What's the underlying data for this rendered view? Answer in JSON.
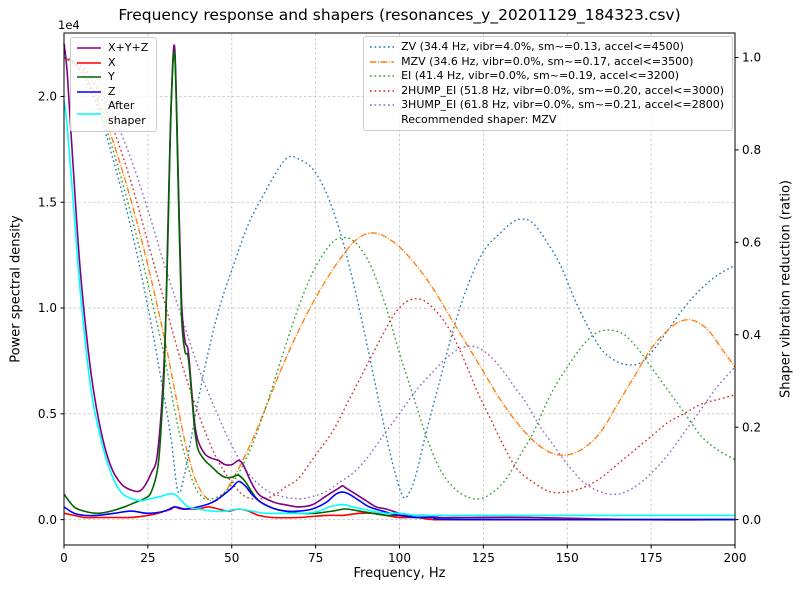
{
  "chart_data": {
    "type": "line",
    "title": "Frequency response and shapers (resonances_y_20201129_184323.csv)",
    "xlabel": "Frequency, Hz",
    "ylabel_left": "Power spectral density",
    "ylabel_right": "Shaper vibration reduction (ratio)",
    "y_offset_text": "1e4",
    "grid": true,
    "xlim": [
      0,
      200
    ],
    "ylim_left": [
      -0.12,
      2.3
    ],
    "ylim_right": [
      -0.055,
      1.053
    ],
    "y_left_units": "1e4 (values match left tick labels)",
    "axes": {
      "x": {
        "label": "Frequency, Hz",
        "ticks": [
          0,
          25,
          50,
          75,
          100,
          125,
          150,
          175,
          200
        ],
        "tick_labels": [
          "0",
          "25",
          "50",
          "75",
          "100",
          "125",
          "150",
          "175",
          "200"
        ]
      },
      "y_left": {
        "label": "Power spectral density",
        "ticks": [
          0,
          0.5,
          1.0,
          1.5,
          2.0
        ],
        "tick_labels": [
          "0.0",
          "0.5",
          "1.0",
          "1.5",
          "2.0"
        ]
      },
      "y_right": {
        "label": "Shaper vibration reduction (ratio)",
        "ticks": [
          0,
          0.2,
          0.4,
          0.6,
          0.8,
          1.0
        ],
        "tick_labels": [
          "0.0",
          "0.2",
          "0.4",
          "0.6",
          "0.8",
          "1.0"
        ]
      }
    },
    "series": [
      {
        "id": "xyz",
        "name": "X+Y+Z",
        "axis": "left",
        "color": "#800080",
        "style": "solid",
        "x": [
          0,
          1,
          3,
          5,
          8,
          11,
          14,
          17,
          20,
          23,
          26,
          28,
          30,
          31,
          32,
          33,
          34,
          35,
          36,
          37,
          38,
          39,
          40,
          42,
          44,
          46,
          48,
          50,
          51,
          52,
          53,
          54,
          56,
          58,
          60,
          63,
          66,
          70,
          74,
          78,
          80,
          82,
          83,
          84,
          86,
          88,
          90,
          93,
          96,
          100,
          104,
          108,
          112,
          120,
          140,
          170,
          200
        ],
        "y": [
          2.25,
          2.1,
          1.6,
          1.15,
          0.7,
          0.42,
          0.25,
          0.17,
          0.14,
          0.14,
          0.22,
          0.33,
          0.8,
          1.4,
          2.0,
          2.23,
          1.65,
          1.05,
          0.85,
          0.8,
          0.62,
          0.45,
          0.37,
          0.31,
          0.29,
          0.28,
          0.26,
          0.26,
          0.27,
          0.28,
          0.27,
          0.24,
          0.17,
          0.12,
          0.1,
          0.08,
          0.07,
          0.06,
          0.07,
          0.11,
          0.13,
          0.15,
          0.16,
          0.15,
          0.13,
          0.11,
          0.09,
          0.06,
          0.05,
          0.03,
          0.02,
          0.02,
          0.01,
          0.01,
          0.01,
          0.0,
          0.0
        ]
      },
      {
        "id": "x",
        "name": "X",
        "axis": "left",
        "color": "#ff0000",
        "style": "solid",
        "x": [
          0,
          3,
          6,
          10,
          15,
          20,
          25,
          28,
          30,
          32,
          33,
          35,
          38,
          40,
          43,
          46,
          49,
          52,
          55,
          58,
          62,
          70,
          78,
          83,
          88,
          92,
          96,
          100,
          105,
          110,
          120,
          200
        ],
        "y": [
          0.03,
          0.02,
          0.01,
          0.01,
          0.01,
          0.01,
          0.02,
          0.03,
          0.04,
          0.05,
          0.06,
          0.05,
          0.05,
          0.05,
          0.06,
          0.05,
          0.04,
          0.05,
          0.04,
          0.02,
          0.01,
          0.01,
          0.02,
          0.02,
          0.03,
          0.03,
          0.02,
          0.01,
          0.01,
          0.0,
          0.0,
          0.0
        ]
      },
      {
        "id": "y",
        "name": "Y",
        "axis": "left",
        "color": "#006400",
        "style": "solid",
        "x": [
          0,
          3,
          6,
          10,
          14,
          18,
          21,
          24,
          26,
          28,
          29,
          30,
          31,
          32,
          33,
          34,
          35,
          36,
          37,
          38,
          39,
          40,
          42,
          44,
          46,
          48,
          50,
          52,
          54,
          56,
          58,
          60,
          63,
          66,
          70,
          75,
          80,
          84,
          88,
          92,
          96,
          100,
          105,
          110,
          120,
          200
        ],
        "y": [
          0.12,
          0.06,
          0.04,
          0.03,
          0.04,
          0.06,
          0.08,
          0.1,
          0.13,
          0.25,
          0.45,
          0.75,
          1.35,
          1.98,
          2.2,
          1.6,
          0.98,
          0.8,
          0.77,
          0.6,
          0.42,
          0.33,
          0.28,
          0.25,
          0.22,
          0.2,
          0.2,
          0.21,
          0.18,
          0.13,
          0.09,
          0.07,
          0.05,
          0.04,
          0.03,
          0.03,
          0.04,
          0.05,
          0.04,
          0.03,
          0.02,
          0.02,
          0.01,
          0.01,
          0.0,
          0.0
        ]
      },
      {
        "id": "z",
        "name": "Z",
        "axis": "left",
        "color": "#0000ff",
        "style": "solid",
        "x": [
          0,
          3,
          6,
          10,
          15,
          20,
          25,
          30,
          33,
          36,
          40,
          44,
          47,
          50,
          52,
          54,
          56,
          58,
          60,
          63,
          66,
          70,
          74,
          78,
          81,
          83,
          85,
          88,
          91,
          95,
          100,
          105,
          110,
          120,
          200
        ],
        "y": [
          0.06,
          0.03,
          0.02,
          0.02,
          0.03,
          0.04,
          0.03,
          0.04,
          0.06,
          0.05,
          0.06,
          0.08,
          0.11,
          0.15,
          0.18,
          0.16,
          0.12,
          0.09,
          0.07,
          0.05,
          0.04,
          0.04,
          0.05,
          0.08,
          0.12,
          0.13,
          0.12,
          0.09,
          0.06,
          0.04,
          0.02,
          0.01,
          0.01,
          0.0,
          0.0
        ]
      },
      {
        "id": "after-shaper",
        "name": "After shaper",
        "axis": "left",
        "color": "#00ffff",
        "style": "solid",
        "x": [
          0,
          1,
          3,
          5,
          8,
          11,
          14,
          17,
          20,
          23,
          26,
          29,
          31,
          33,
          35,
          37,
          40,
          44,
          48,
          52,
          56,
          60,
          64,
          68,
          72,
          76,
          79,
          82,
          84,
          86,
          89,
          92,
          96,
          100,
          105,
          110,
          120,
          140,
          170,
          200
        ],
        "y": [
          1.98,
          1.85,
          1.45,
          1.05,
          0.62,
          0.38,
          0.22,
          0.13,
          0.1,
          0.09,
          0.1,
          0.11,
          0.12,
          0.12,
          0.09,
          0.06,
          0.05,
          0.04,
          0.04,
          0.05,
          0.04,
          0.03,
          0.03,
          0.03,
          0.03,
          0.04,
          0.06,
          0.07,
          0.07,
          0.06,
          0.05,
          0.04,
          0.03,
          0.03,
          0.02,
          0.02,
          0.02,
          0.02,
          0.02,
          0.02
        ]
      },
      {
        "id": "zv",
        "name": "ZV",
        "axis": "right",
        "color": "#1f77b4",
        "style": "dotted",
        "x": [
          0,
          5,
          10,
          15,
          20,
          25,
          30,
          32,
          34,
          36,
          38,
          42,
          46,
          50,
          55,
          60,
          64,
          67,
          70,
          74,
          78,
          82,
          86,
          90,
          94,
          98,
          101,
          103,
          105,
          108,
          112,
          116,
          120,
          125,
          130,
          134,
          137,
          140,
          144,
          148,
          152,
          156,
          160,
          164,
          168,
          172,
          176,
          180,
          185,
          190,
          195,
          200
        ],
        "y": [
          1.0,
          0.97,
          0.89,
          0.77,
          0.63,
          0.46,
          0.26,
          0.17,
          0.06,
          0.1,
          0.18,
          0.33,
          0.45,
          0.54,
          0.64,
          0.71,
          0.76,
          0.785,
          0.78,
          0.76,
          0.71,
          0.63,
          0.52,
          0.39,
          0.25,
          0.12,
          0.05,
          0.06,
          0.1,
          0.19,
          0.3,
          0.41,
          0.5,
          0.58,
          0.62,
          0.645,
          0.65,
          0.64,
          0.6,
          0.55,
          0.48,
          0.42,
          0.37,
          0.345,
          0.335,
          0.34,
          0.37,
          0.41,
          0.46,
          0.5,
          0.53,
          0.55
        ]
      },
      {
        "id": "mzv",
        "name": "MZV",
        "axis": "right",
        "color": "#ff7f0e",
        "style": "dashdot",
        "x": [
          0,
          5,
          10,
          15,
          20,
          25,
          30,
          33,
          36,
          39,
          42,
          45,
          48,
          52,
          56,
          60,
          65,
          70,
          75,
          80,
          85,
          88,
          91,
          95,
          100,
          105,
          110,
          115,
          120,
          125,
          130,
          135,
          140,
          145,
          150,
          155,
          160,
          165,
          170,
          175,
          180,
          184,
          188,
          192,
          196,
          200
        ],
        "y": [
          1.0,
          0.975,
          0.91,
          0.81,
          0.69,
          0.55,
          0.39,
          0.28,
          0.17,
          0.09,
          0.05,
          0.04,
          0.06,
          0.11,
          0.17,
          0.24,
          0.33,
          0.41,
          0.48,
          0.54,
          0.59,
          0.61,
          0.62,
          0.615,
          0.59,
          0.55,
          0.5,
          0.44,
          0.38,
          0.32,
          0.26,
          0.21,
          0.17,
          0.145,
          0.14,
          0.155,
          0.19,
          0.25,
          0.31,
          0.37,
          0.41,
          0.43,
          0.43,
          0.41,
          0.37,
          0.33
        ]
      },
      {
        "id": "ei",
        "name": "EI",
        "axis": "right",
        "color": "#2ca02c",
        "style": "dotted",
        "x": [
          0,
          5,
          10,
          15,
          20,
          25,
          30,
          34,
          38,
          41,
          44,
          48,
          52,
          56,
          60,
          64,
          68,
          72,
          76,
          80,
          83,
          86,
          89,
          92,
          96,
          100,
          104,
          108,
          112,
          116,
          120,
          124,
          128,
          132,
          136,
          140,
          145,
          150,
          155,
          159,
          163,
          167,
          171,
          175,
          180,
          185,
          190,
          195,
          200
        ],
        "y": [
          1.0,
          0.97,
          0.9,
          0.79,
          0.66,
          0.51,
          0.35,
          0.2,
          0.09,
          0.05,
          0.045,
          0.06,
          0.1,
          0.16,
          0.24,
          0.33,
          0.42,
          0.5,
          0.56,
          0.6,
          0.61,
          0.605,
          0.58,
          0.54,
          0.46,
          0.36,
          0.27,
          0.18,
          0.11,
          0.07,
          0.05,
          0.045,
          0.06,
          0.09,
          0.14,
          0.19,
          0.27,
          0.33,
          0.38,
          0.405,
          0.41,
          0.4,
          0.37,
          0.33,
          0.28,
          0.23,
          0.18,
          0.15,
          0.13
        ]
      },
      {
        "id": "2hump-ei",
        "name": "2HUMP_EI",
        "axis": "right",
        "color": "#d62728",
        "style": "dotted",
        "x": [
          0,
          5,
          10,
          15,
          20,
          25,
          30,
          35,
          40,
          45,
          50,
          54,
          58,
          62,
          66,
          70,
          75,
          80,
          85,
          90,
          95,
          99,
          103,
          107,
          111,
          115,
          119,
          123,
          127,
          131,
          135,
          140,
          145,
          150,
          155,
          160,
          165,
          170,
          175,
          180,
          185,
          190,
          195,
          200
        ],
        "y": [
          1.0,
          0.98,
          0.93,
          0.84,
          0.73,
          0.6,
          0.47,
          0.34,
          0.23,
          0.14,
          0.08,
          0.05,
          0.045,
          0.05,
          0.07,
          0.09,
          0.14,
          0.19,
          0.26,
          0.33,
          0.4,
          0.45,
          0.475,
          0.475,
          0.45,
          0.41,
          0.35,
          0.28,
          0.22,
          0.16,
          0.11,
          0.08,
          0.06,
          0.06,
          0.07,
          0.09,
          0.12,
          0.15,
          0.18,
          0.21,
          0.23,
          0.25,
          0.26,
          0.27
        ]
      },
      {
        "id": "3hump-ei",
        "name": "3HUMP_EI",
        "axis": "right",
        "color": "#9467bd",
        "style": "dotted",
        "x": [
          0,
          5,
          10,
          15,
          20,
          25,
          30,
          35,
          40,
          45,
          50,
          55,
          60,
          65,
          70,
          74,
          78,
          82,
          86,
          90,
          95,
          100,
          105,
          110,
          114,
          118,
          122,
          126,
          130,
          134,
          138,
          142,
          146,
          150,
          155,
          160,
          165,
          170,
          175,
          180,
          185,
          190,
          195,
          200
        ],
        "y": [
          1.0,
          0.985,
          0.94,
          0.87,
          0.78,
          0.67,
          0.55,
          0.44,
          0.33,
          0.24,
          0.16,
          0.1,
          0.065,
          0.05,
          0.045,
          0.05,
          0.06,
          0.08,
          0.1,
          0.13,
          0.18,
          0.23,
          0.28,
          0.32,
          0.35,
          0.37,
          0.375,
          0.36,
          0.33,
          0.29,
          0.25,
          0.2,
          0.16,
          0.12,
          0.08,
          0.06,
          0.055,
          0.07,
          0.1,
          0.14,
          0.19,
          0.24,
          0.29,
          0.33
        ]
      }
    ]
  },
  "legend_psd": {
    "items": [
      {
        "id": "xyz",
        "label": "X+Y+Z",
        "color": "#800080",
        "style": "solid"
      },
      {
        "id": "x",
        "label": "X",
        "color": "#ff0000",
        "style": "solid"
      },
      {
        "id": "y",
        "label": "Y",
        "color": "#006400",
        "style": "solid"
      },
      {
        "id": "z",
        "label": "Z",
        "color": "#0000ff",
        "style": "solid"
      },
      {
        "id": "after-shaper",
        "label": "After\nshaper",
        "color": "#00ffff",
        "style": "solid"
      }
    ]
  },
  "legend_shapers": {
    "items": [
      {
        "id": "zv",
        "label": "ZV (34.4 Hz, vibr=4.0%, sm~=0.13, accel<=4500)",
        "color": "#1f77b4",
        "style": "dotted"
      },
      {
        "id": "mzv",
        "label": "MZV (34.6 Hz, vibr=0.0%, sm~=0.17, accel<=3500)",
        "color": "#ff7f0e",
        "style": "dashdot"
      },
      {
        "id": "ei",
        "label": "EI (41.4 Hz, vibr=0.0%, sm~=0.19, accel<=3200)",
        "color": "#2ca02c",
        "style": "dotted"
      },
      {
        "id": "2hump-ei",
        "label": "2HUMP_EI (51.8 Hz, vibr=0.0%, sm~=0.20, accel<=3000)",
        "color": "#d62728",
        "style": "dotted"
      },
      {
        "id": "3hump-ei",
        "label": "3HUMP_EI (61.8 Hz, vibr=0.0%, sm~=0.21, accel<=2800)",
        "color": "#9467bd",
        "style": "dotted"
      }
    ],
    "recommendation": "Recommended shaper: MZV"
  }
}
